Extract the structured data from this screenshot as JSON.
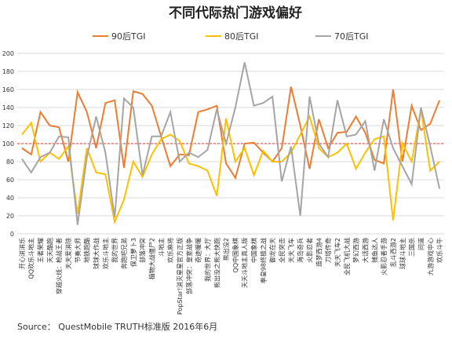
{
  "chart_data": {
    "type": "line",
    "title": "不同代际热门游戏偏好",
    "categories": [
      "开心消消乐",
      "QQ欢乐斗地主",
      "王者荣耀",
      "天天酷跑",
      "穿越火线：枪战王者",
      "天天爱消除",
      "节奏大师",
      "地铁跑酷",
      "球球大作战",
      "欢乐斗地主",
      "我的世界",
      "奔跑吧兄弟",
      "保卫萝卜3",
      "部落冲突",
      "植物大战僵尸2",
      "斗地主",
      "欢乐麻将",
      "PopStar!消灭星星官方正版",
      "部落冲突：皇室战争",
      "奇迹暖暖",
      "我的世界：大厅",
      "熊出没之熊大快跑",
      "熊出没2",
      "QQ中国象棋",
      "天天斗地主真人版",
      "中国象棋",
      "拳皇98终极之战",
      "御龙在天",
      "全民突击",
      "天天飞车",
      "海岛奇兵",
      "火影忍者",
      "造梦西游4",
      "刀塔传奇",
      "天天飞车2",
      "全民飞机大战",
      "梦幻西游",
      "大话西游",
      "捕鱼达人",
      "火影忍者手游",
      "乱斗西游2",
      "球球斗地主",
      "三国杀",
      "问道",
      "九游游戏中心",
      "欢乐斗牛"
    ],
    "series": [
      {
        "name": "90后TGI",
        "color": "#ED7D31",
        "values": [
          95,
          88,
          135,
          120,
          118,
          80,
          157,
          135,
          95,
          145,
          148,
          73,
          158,
          155,
          142,
          108,
          75,
          88,
          87,
          135,
          138,
          142,
          78,
          62,
          100,
          101,
          90,
          80,
          95,
          163,
          120,
          72,
          127,
          95,
          112,
          113,
          130,
          112,
          82,
          78,
          160,
          80,
          142,
          115,
          122,
          148
        ]
      },
      {
        "name": "80后TGI",
        "color": "#FFC000",
        "values": [
          110,
          123,
          80,
          90,
          83,
          97,
          22,
          95,
          68,
          66,
          13,
          38,
          80,
          63,
          88,
          105,
          110,
          103,
          78,
          75,
          70,
          42,
          128,
          80,
          95,
          65,
          92,
          80,
          80,
          90,
          110,
          130,
          95,
          85,
          90,
          100,
          72,
          90,
          105,
          108,
          15,
          100,
          80,
          138,
          70,
          80
        ]
      },
      {
        "name": "70后TGI",
        "color": "#A5A5A5",
        "values": [
          83,
          68,
          85,
          90,
          108,
          107,
          10,
          85,
          130,
          90,
          18,
          150,
          140,
          65,
          108,
          108,
          135,
          80,
          90,
          85,
          93,
          138,
          100,
          140,
          190,
          142,
          145,
          152,
          58,
          97,
          20,
          152,
          100,
          85,
          148,
          108,
          110,
          125,
          70,
          127,
          95,
          75,
          55,
          140,
          97,
          50
        ]
      }
    ],
    "reference_line": 100,
    "reference_color": "#E03030",
    "ylim": [
      0,
      200
    ],
    "yticks": [
      0,
      20,
      40,
      60,
      80,
      100,
      120,
      140,
      160,
      180,
      200
    ],
    "grid": true,
    "source": "Source： QuestMobile TRUTH标准版 2016年6月"
  }
}
